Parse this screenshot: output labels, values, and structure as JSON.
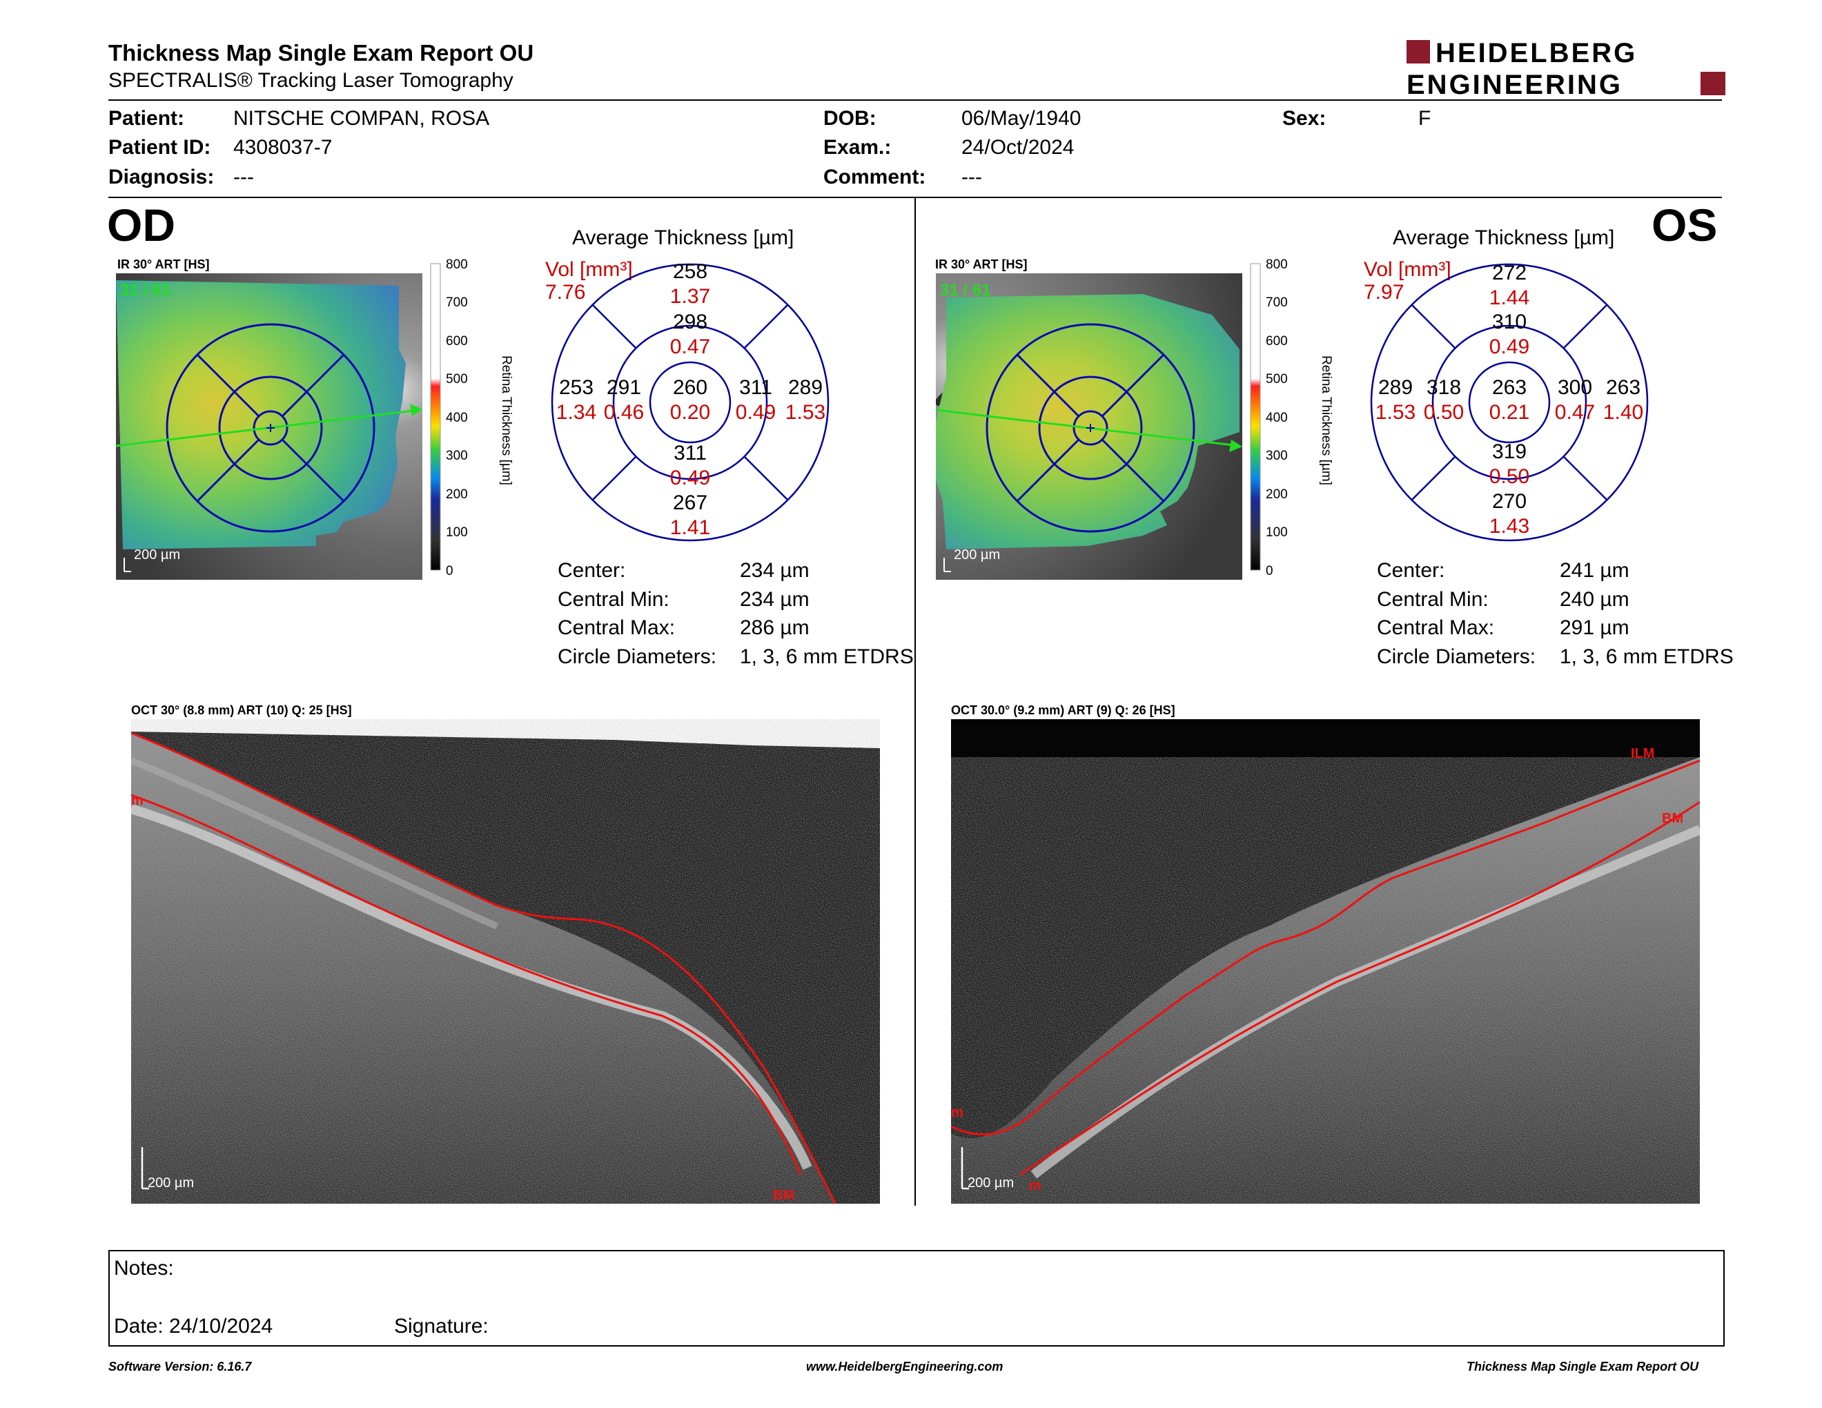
{
  "header": {
    "title": "Thickness Map Single Exam Report OU",
    "subtitle": "SPECTRALIS® Tracking Laser Tomography",
    "logo_line1": "HEIDELBERG",
    "logo_line2": "ENGINEERING"
  },
  "patient": {
    "patient_label": "Patient:",
    "patient_value": "NITSCHE COMPAN, ROSA",
    "id_label": "Patient ID:",
    "id_value": "4308037-7",
    "diagnosis_label": "Diagnosis:",
    "diagnosis_value": "---",
    "dob_label": "DOB:",
    "dob_value": "06/May/1940",
    "exam_label": "Exam.:",
    "exam_value": "24/Oct/2024",
    "comment_label": "Comment:",
    "comment_value": "---",
    "sex_label": "Sex:",
    "sex_value": "F"
  },
  "od": {
    "eye": "OD",
    "ir_label": "IR 30° ART [HS]",
    "ir_frames": "31 / 61",
    "scale_bar": "200 µm",
    "colorbar_ticks": [
      "800",
      "700",
      "600",
      "500",
      "400",
      "300",
      "200",
      "100",
      "0"
    ],
    "colorbar_title": "Retina Thickness [µm]",
    "avg_title": "Average Thickness [µm]",
    "vol_label": "Vol [mm³]",
    "vol_value": "7.76",
    "sectors": {
      "outer_sup": [
        "258",
        "1.37"
      ],
      "inner_sup": [
        "298",
        "0.47"
      ],
      "outer_temp": [
        "253",
        "1.34"
      ],
      "inner_temp": [
        "291",
        "0.46"
      ],
      "center": [
        "260",
        "0.20"
      ],
      "inner_nas": [
        "311",
        "0.49"
      ],
      "outer_nas": [
        "289",
        "1.53"
      ],
      "inner_inf": [
        "311",
        "0.49"
      ],
      "outer_inf": [
        "267",
        "1.41"
      ]
    },
    "stats": {
      "center_label": "Center:",
      "center_value": "234 µm",
      "min_label": "Central Min:",
      "min_value": "234 µm",
      "max_label": "Central Max:",
      "max_value": "286 µm",
      "diam_label": "Circle Diameters:",
      "diam_value": "1, 3, 6 mm ETDRS"
    },
    "oct_label": "OCT 30° (8.8 mm) ART (10) Q: 25 [HS]",
    "oct_scale": "200 µm",
    "oct_tags": [
      "m",
      "BM"
    ]
  },
  "os": {
    "eye": "OS",
    "ir_label": "IR 30° ART [HS]",
    "ir_frames": "31 / 61",
    "scale_bar": "200 µm",
    "colorbar_ticks": [
      "800",
      "700",
      "600",
      "500",
      "400",
      "300",
      "200",
      "100",
      "0"
    ],
    "colorbar_title": "Retina Thickness [µm]",
    "avg_title": "Average Thickness [µm]",
    "vol_label": "Vol [mm³]",
    "vol_value": "7.97",
    "sectors": {
      "outer_sup": [
        "272",
        "1.44"
      ],
      "inner_sup": [
        "310",
        "0.49"
      ],
      "outer_temp": [
        "289",
        "1.53"
      ],
      "inner_temp": [
        "318",
        "0.50"
      ],
      "center": [
        "263",
        "0.21"
      ],
      "inner_nas": [
        "300",
        "0.47"
      ],
      "outer_nas": [
        "263",
        "1.40"
      ],
      "inner_inf": [
        "319",
        "0.50"
      ],
      "outer_inf": [
        "270",
        "1.43"
      ]
    },
    "stats": {
      "center_label": "Center:",
      "center_value": "241 µm",
      "min_label": "Central Min:",
      "min_value": "240 µm",
      "max_label": "Central Max:",
      "max_value": "291 µm",
      "diam_label": "Circle Diameters:",
      "diam_value": "1, 3, 6 mm ETDRS"
    },
    "oct_label": "OCT 30.0° (9.2 mm) ART (9) Q: 26 [HS]",
    "oct_scale": "200 µm",
    "oct_tags": [
      "ILM",
      "BM",
      "m",
      "m"
    ]
  },
  "notes": {
    "notes_label": "Notes:",
    "date_label": "Date: 24/10/2024",
    "signature_label": "Signature:"
  },
  "footer": {
    "software": "Software Version: 6.16.7",
    "website": "www.HeidelbergEngineering.com",
    "report": "Thickness Map Single Exam Report OU"
  },
  "colors": {
    "red": "#cc0000",
    "blue": "#00009a",
    "logo_red": "#8b1a2b",
    "green": "#22dd22"
  }
}
